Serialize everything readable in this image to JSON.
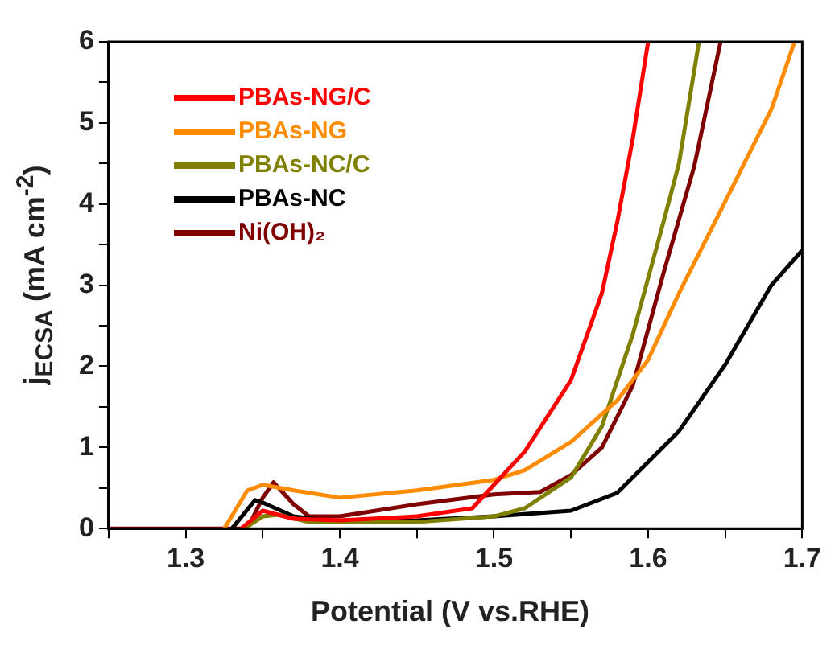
{
  "chart_data": {
    "type": "line",
    "xlabel": "Potential (V vs.RHE)",
    "ylabel": "j$_{ECSA}$ (mA cm$^{-2}$)",
    "xlim": [
      1.25,
      1.7
    ],
    "ylim": [
      0,
      6
    ],
    "xticks": [
      {
        "value": 1.25,
        "label": null
      },
      1.3,
      {
        "value": 1.35,
        "label": null
      },
      1.4,
      {
        "value": 1.45,
        "label": null
      },
      1.5,
      {
        "value": 1.55,
        "label": null
      },
      1.6,
      {
        "value": 1.65,
        "label": null
      },
      1.7
    ],
    "yticks": [
      0,
      {
        "value": 0.5,
        "label": null
      },
      1,
      {
        "value": 1.5,
        "label": null
      },
      2,
      {
        "value": 2.5,
        "label": null
      },
      3,
      {
        "value": 3.5,
        "label": null
      },
      4,
      {
        "value": 4.5,
        "label": null
      },
      5,
      {
        "value": 5.5,
        "label": null
      },
      6
    ],
    "grid": false,
    "legend": "top left",
    "marker": "none",
    "line_style": "solid",
    "series": [
      {
        "name": "PBAs-NG/C",
        "color": "#ff0000",
        "x": [
          1.336,
          1.35,
          1.37,
          1.4,
          1.45,
          1.486,
          1.5,
          1.52,
          1.55,
          1.57,
          1.58,
          1.59,
          1.6
        ],
        "values": [
          0,
          0.22,
          0.12,
          0.1,
          0.15,
          0.25,
          0.54,
          0.95,
          1.83,
          2.9,
          3.78,
          4.8,
          6
        ]
      },
      {
        "name": "PBAs-NG",
        "color": "#ff8c00",
        "x": [
          1.325,
          1.34,
          1.35,
          1.37,
          1.4,
          1.45,
          1.5,
          1.52,
          1.55,
          1.58,
          1.6,
          1.62,
          1.65,
          1.68,
          1.695
        ],
        "values": [
          0,
          0.47,
          0.54,
          0.47,
          0.38,
          0.47,
          0.6,
          0.72,
          1.07,
          1.58,
          2.08,
          2.9,
          4.03,
          5.17,
          6
        ]
      },
      {
        "name": "PBAs-NC/C",
        "color": "#808000",
        "x": [
          1.338,
          1.35,
          1.36,
          1.38,
          1.45,
          1.5,
          1.52,
          1.55,
          1.57,
          1.59,
          1.61,
          1.62,
          1.633
        ],
        "values": [
          0,
          0.15,
          0.17,
          0.08,
          0.08,
          0.15,
          0.25,
          0.63,
          1.26,
          2.39,
          3.78,
          4.5,
          6
        ]
      },
      {
        "name": "PBAs-NC",
        "color": "#000000",
        "x": [
          1.33,
          1.345,
          1.35,
          1.37,
          1.4,
          1.45,
          1.5,
          1.55,
          1.58,
          1.6,
          1.62,
          1.65,
          1.68,
          1.7
        ],
        "values": [
          0,
          0.35,
          0.32,
          0.15,
          0.08,
          0.1,
          0.15,
          0.22,
          0.44,
          0.82,
          1.2,
          2.02,
          3.0,
          3.43
        ]
      },
      {
        "name": "Ni(OH)₂",
        "color": "#800000",
        "x": [
          1.25,
          1.34,
          1.35,
          1.357,
          1.37,
          1.38,
          1.4,
          1.45,
          1.5,
          1.53,
          1.55,
          1.57,
          1.59,
          1.61,
          1.63,
          1.647
        ],
        "values": [
          0,
          0,
          0.38,
          0.57,
          0.3,
          0.15,
          0.15,
          0.3,
          0.42,
          0.45,
          0.66,
          1.0,
          1.76,
          3.15,
          4.47,
          6
        ]
      }
    ]
  }
}
